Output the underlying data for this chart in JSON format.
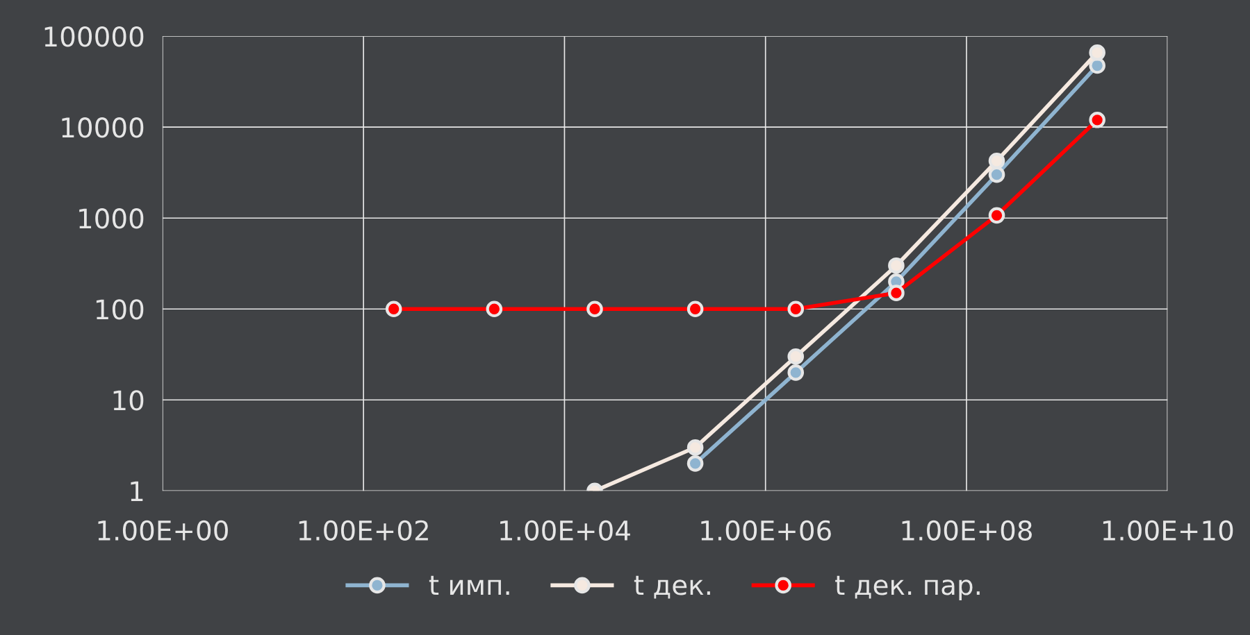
{
  "chart_data": {
    "type": "line",
    "series": [
      {
        "name": "t имп.",
        "color": "#8fb4d0",
        "x": [
          200000,
          2000000,
          20000000,
          200000000,
          2000000000
        ],
        "values": [
          2,
          20,
          200,
          3000,
          47500
        ]
      },
      {
        "name": "t дек.",
        "color": "#f5e9e0",
        "x": [
          20000,
          200000,
          2000000,
          20000000,
          200000000,
          2000000000
        ],
        "values": [
          1,
          3,
          30,
          300,
          4250,
          66000
        ]
      },
      {
        "name": "t дек. пар.",
        "color": "#ff0000",
        "x": [
          200,
          2000,
          20000,
          200000,
          2000000,
          20000000,
          200000000,
          2000000000
        ],
        "values": [
          100,
          100,
          100,
          100,
          100,
          150,
          1070,
          12000
        ]
      }
    ],
    "log": "xy",
    "xlim": [
      1,
      10000000000
    ],
    "ylim": [
      1,
      100000
    ],
    "xticks": [
      {
        "value": 1,
        "label": "1.00E+00"
      },
      {
        "value": 100,
        "label": "1.00E+02"
      },
      {
        "value": 10000,
        "label": "1.00E+04"
      },
      {
        "value": 1000000,
        "label": "1.00E+06"
      },
      {
        "value": 100000000,
        "label": "1.00E+08"
      },
      {
        "value": 10000000000,
        "label": "1.00E+10"
      }
    ],
    "yticks": [
      1,
      10,
      100,
      1000,
      10000,
      100000
    ],
    "grid": true,
    "legend": "bottom",
    "marker": "circle",
    "line_style": "solid"
  }
}
